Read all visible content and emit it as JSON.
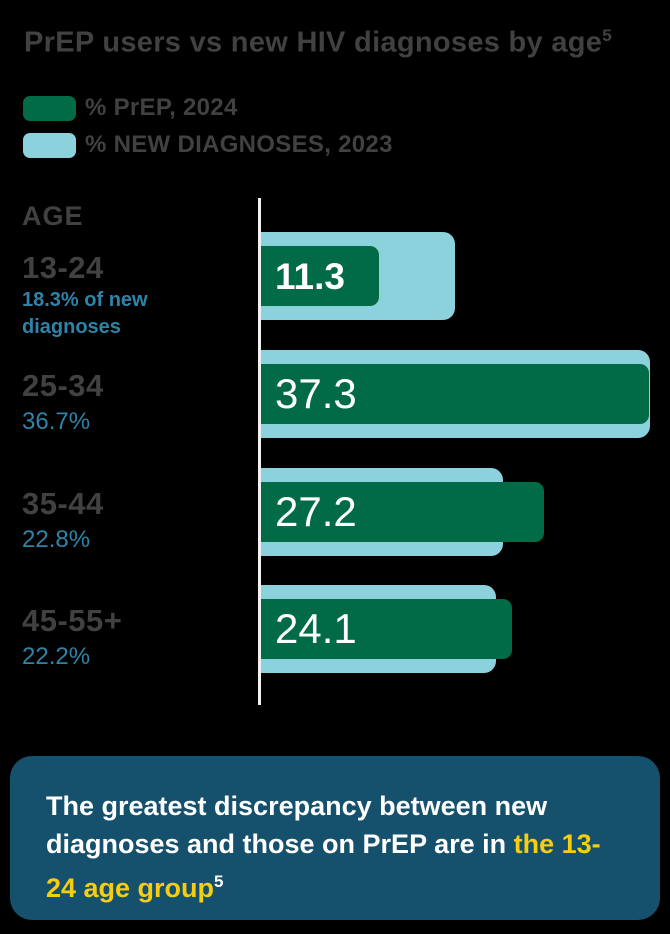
{
  "page": {
    "background": "#000000"
  },
  "header": {
    "title": "PrEP users vs new HIV diagnoses by age",
    "title_sup": "5"
  },
  "legend": {
    "items": [
      {
        "label": "% PrEP, 2024",
        "color": "#006B46"
      },
      {
        "label": "% NEW DIAGNOSES, 2023",
        "color": "#8CD2DD"
      }
    ]
  },
  "chart_data": {
    "type": "bar",
    "orientation": "horizontal",
    "title": "PrEP users vs new HIV diagnoses by age",
    "axis_label": "AGE",
    "categories": [
      "13-24",
      "25-34",
      "35-44",
      "45-55+"
    ],
    "category_sublabels": [
      "18.3% of new diagnoses",
      "36.7%",
      "22.8%",
      "22.2%"
    ],
    "series": [
      {
        "name": "% PrEP, 2024",
        "color": "#006B46",
        "values": [
          11.3,
          37.3,
          27.2,
          24.1
        ]
      },
      {
        "name": "% NEW DIAGNOSES, 2023",
        "color": "#8CD2DD",
        "values": [
          18.3,
          36.7,
          22.8,
          22.2
        ]
      }
    ],
    "bar_value_labels": [
      "11.3",
      "37.3",
      "27.2",
      "24.1"
    ],
    "xlim": [
      0,
      38.5
    ],
    "grid": false,
    "legend_position": "top-left",
    "axis_color": "#F1F1F2",
    "label_color": "#414042",
    "sublabel_color": "#2E84A8"
  },
  "callout": {
    "text_white": "The greatest discrepancy between new diagnoses and those on PrEP are in",
    "text_yellow": "the 13-24 age group",
    "sup": "5",
    "background": "#15506C",
    "highlight_color": "#F6CD11"
  }
}
